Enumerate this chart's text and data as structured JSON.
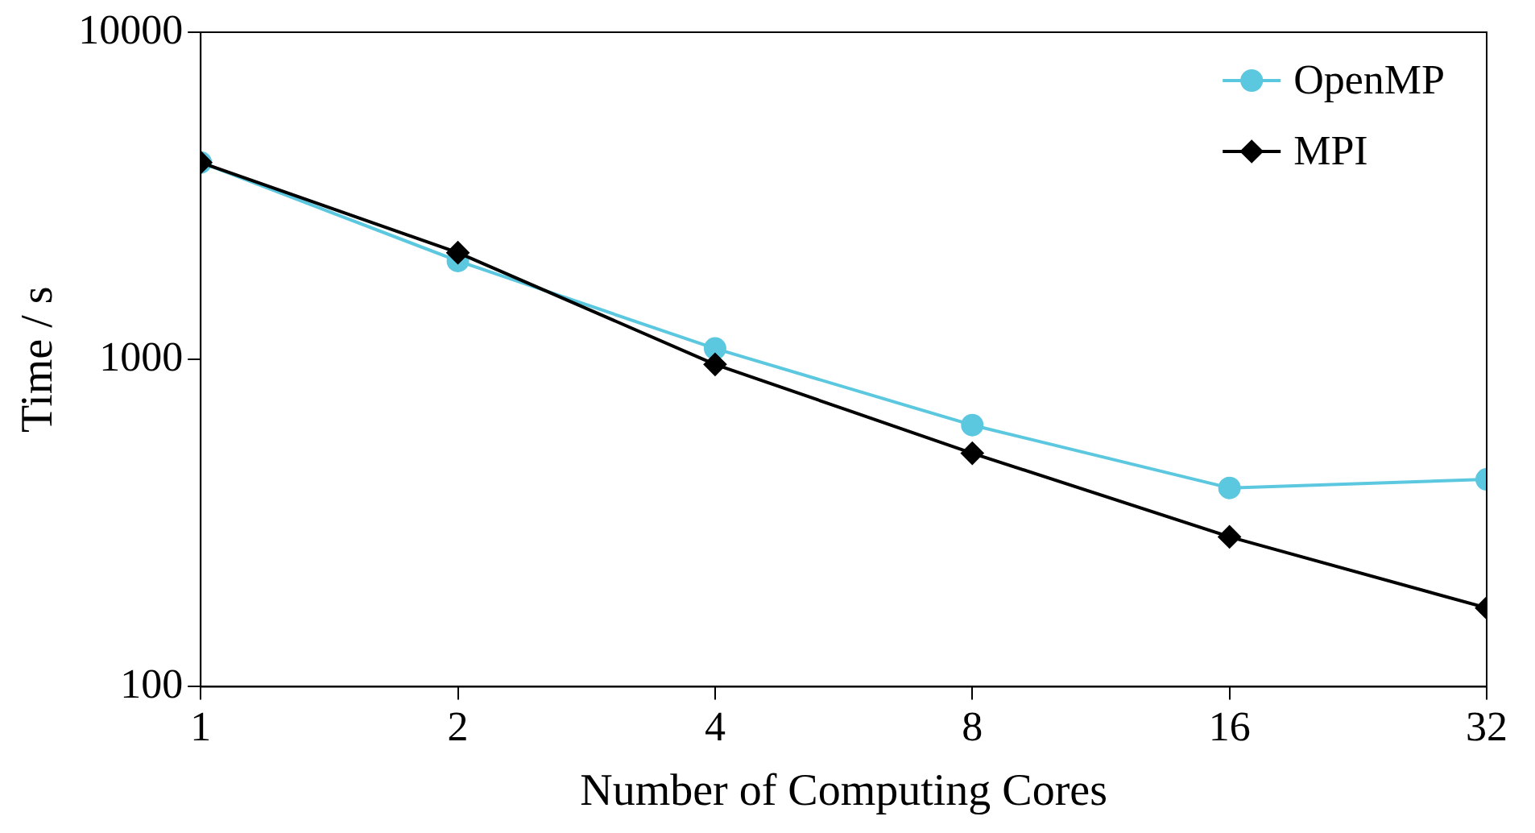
{
  "chart_data": {
    "type": "line",
    "xlabel": "Number of Computing Cores",
    "ylabel": "Time / s",
    "log": "xy",
    "x": [
      1,
      2,
      4,
      8,
      16,
      32
    ],
    "xlim": [
      1,
      32
    ],
    "xticks": [
      1,
      2,
      4,
      8,
      16,
      32
    ],
    "ylim": [
      100,
      10000
    ],
    "yticks": [
      100,
      1000,
      10000
    ],
    "grid": false,
    "legend": "top right",
    "series": [
      {
        "name": "OpenMP",
        "color": "#5bc8e0",
        "marker": "circle",
        "values": [
          4000,
          2000,
          1080,
          630,
          405,
          430
        ]
      },
      {
        "name": "MPI",
        "color": "#000000",
        "marker": "diamond",
        "values": [
          4000,
          2120,
          966,
          517,
          287,
          174
        ]
      }
    ]
  }
}
